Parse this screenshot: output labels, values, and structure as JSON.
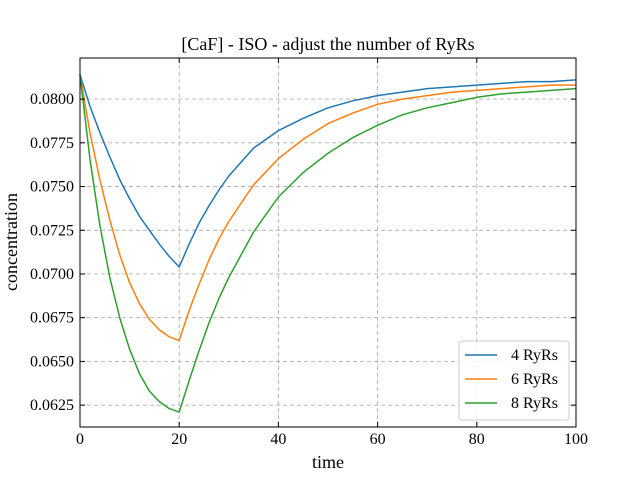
{
  "chart_data": {
    "type": "line",
    "title": "[CaF] - ISO - adjust the number of RyRs",
    "xlabel": "time",
    "ylabel": "concentration",
    "xlim": [
      0,
      100
    ],
    "ylim": [
      0.06125,
      0.08235
    ],
    "xticks": [
      0,
      20,
      40,
      60,
      80,
      100
    ],
    "xtick_labels": [
      "0",
      "20",
      "40",
      "60",
      "80",
      "100"
    ],
    "yticks": [
      0.0625,
      0.065,
      0.0675,
      0.07,
      0.0725,
      0.075,
      0.0775,
      0.08
    ],
    "ytick_labels": [
      "0.0625",
      "0.0650",
      "0.0675",
      "0.0700",
      "0.0725",
      "0.0750",
      "0.0775",
      "0.0800"
    ],
    "grid": true,
    "legend_position": "lower-right",
    "series": [
      {
        "name": "4 RyRs",
        "color": "#1f77b4",
        "x": [
          0,
          2,
          4,
          6,
          8,
          10,
          12,
          14,
          16,
          18,
          20,
          22,
          24,
          26,
          28,
          30,
          35,
          40,
          45,
          50,
          55,
          60,
          65,
          70,
          75,
          80,
          85,
          90,
          95,
          100
        ],
        "y": [
          0.0814,
          0.0796,
          0.0781,
          0.0767,
          0.0754,
          0.0743,
          0.0733,
          0.0725,
          0.0717,
          0.071,
          0.0704,
          0.0717,
          0.0729,
          0.0739,
          0.0748,
          0.0756,
          0.0772,
          0.0782,
          0.0789,
          0.0795,
          0.0799,
          0.0802,
          0.0804,
          0.0806,
          0.0807,
          0.0808,
          0.0809,
          0.081,
          0.081,
          0.0811
        ]
      },
      {
        "name": "6 RyRs",
        "color": "#ff7f0e",
        "x": [
          0,
          2,
          4,
          6,
          8,
          10,
          12,
          14,
          16,
          18,
          20,
          22,
          24,
          26,
          28,
          30,
          35,
          40,
          45,
          50,
          55,
          60,
          65,
          70,
          75,
          80,
          85,
          90,
          95,
          100
        ],
        "y": [
          0.0814,
          0.0781,
          0.0754,
          0.0731,
          0.0711,
          0.0695,
          0.0683,
          0.0674,
          0.0668,
          0.0664,
          0.0662,
          0.0679,
          0.0694,
          0.0708,
          0.072,
          0.073,
          0.0751,
          0.0766,
          0.0777,
          0.0786,
          0.0792,
          0.0797,
          0.08,
          0.0802,
          0.0804,
          0.0805,
          0.0806,
          0.0807,
          0.0808,
          0.0808
        ]
      },
      {
        "name": "8 RyRs",
        "color": "#2ca02c",
        "x": [
          0,
          2,
          4,
          6,
          8,
          10,
          12,
          14,
          16,
          18,
          20,
          22,
          24,
          26,
          28,
          30,
          35,
          40,
          45,
          50,
          55,
          60,
          65,
          70,
          75,
          80,
          85,
          90,
          95,
          100
        ],
        "y": [
          0.0814,
          0.0766,
          0.0728,
          0.0698,
          0.0675,
          0.0657,
          0.0643,
          0.0633,
          0.0627,
          0.0623,
          0.0621,
          0.0639,
          0.0656,
          0.0672,
          0.0686,
          0.0698,
          0.0724,
          0.0744,
          0.0758,
          0.0769,
          0.0778,
          0.0785,
          0.0791,
          0.0795,
          0.0798,
          0.0801,
          0.0803,
          0.0804,
          0.0805,
          0.0806
        ]
      }
    ]
  }
}
